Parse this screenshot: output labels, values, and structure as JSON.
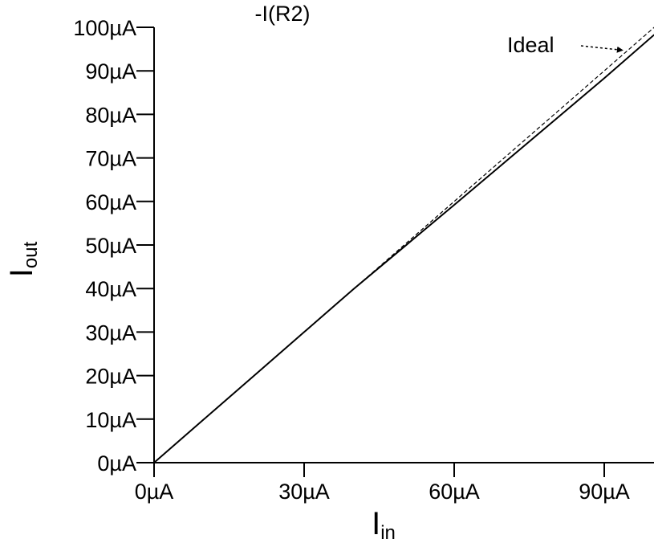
{
  "chart_data": {
    "type": "line",
    "title": "-I(R2)",
    "xlabel": {
      "main": "I",
      "sub": "in"
    },
    "ylabel": {
      "main": "I",
      "sub": "out"
    },
    "unit": "µA",
    "xlim": [
      0,
      100
    ],
    "ylim": [
      0,
      100
    ],
    "x_ticks": [
      0,
      30,
      60,
      90
    ],
    "x_tick_labels": [
      "0µA",
      "30µA",
      "60µA",
      "90µA"
    ],
    "y_ticks": [
      0,
      10,
      20,
      30,
      40,
      50,
      60,
      70,
      80,
      90,
      100
    ],
    "y_tick_labels": [
      "0µA",
      "10µA",
      "20µA",
      "30µA",
      "40µA",
      "50µA",
      "60µA",
      "70µA",
      "80µA",
      "90µA",
      "100µA"
    ],
    "grid": false,
    "series": [
      {
        "style": "solid",
        "color": "#000000",
        "x": [
          0,
          10,
          20,
          30,
          40,
          50,
          60,
          70,
          80,
          90,
          100
        ],
        "y": [
          0,
          10,
          20,
          30,
          40,
          49.6,
          59.2,
          68.9,
          78.6,
          88.3,
          98.3
        ]
      },
      {
        "name": "Ideal",
        "style": "dashed",
        "color": "#000000",
        "x": [
          0,
          100
        ],
        "y": [
          0,
          100
        ]
      }
    ],
    "annotations": [
      {
        "text": "Ideal",
        "arrow_to": {
          "x": 94,
          "y": 94
        }
      }
    ]
  }
}
